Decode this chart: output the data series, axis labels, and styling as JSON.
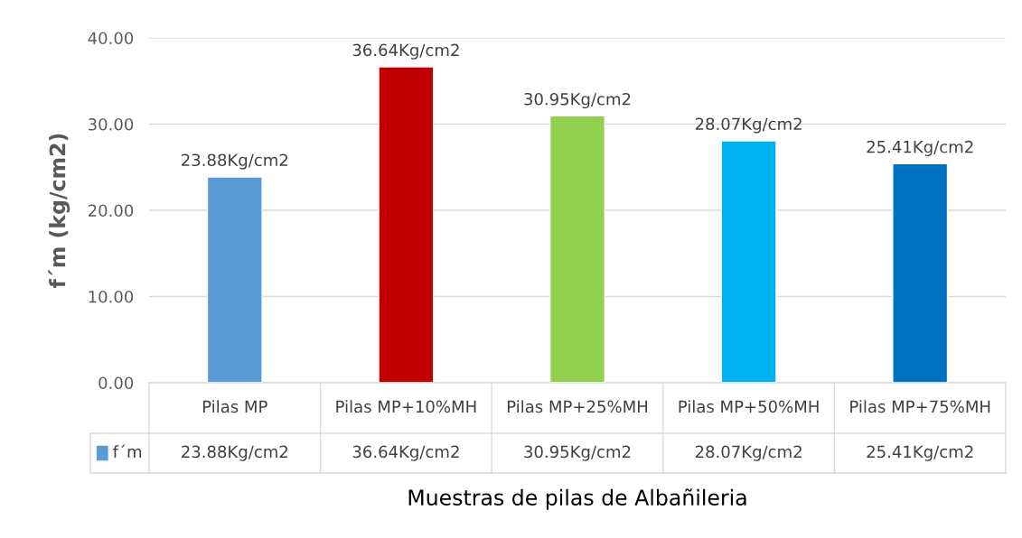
{
  "chart_data": {
    "type": "bar",
    "categories": [
      "Pilas MP",
      "Pilas MP+10%MH",
      "Pilas MP+25%MH",
      "Pilas MP+50%MH",
      "Pilas MP+75%MH"
    ],
    "series": [
      {
        "name": "f´m",
        "color": "#5b9bd5",
        "colors": [
          "#5b9bd5",
          "#c00000",
          "#92d050",
          "#00b0f0",
          "#0070c0"
        ],
        "values": [
          23.88,
          36.64,
          30.95,
          28.07,
          25.41
        ],
        "value_labels": [
          "23.88Kg/cm2",
          "36.64Kg/cm2",
          "30.95Kg/cm2",
          "28.07Kg/cm2",
          "25.41Kg/cm2"
        ]
      }
    ],
    "xlabel": "Muestras de pilas de Albañileria",
    "ylabel": "f´m (kg/cm2)",
    "ylim": [
      0,
      40
    ],
    "yticks": [
      {
        "value": 0,
        "label": "0.00"
      },
      {
        "value": 10,
        "label": "10.00"
      },
      {
        "value": 20,
        "label": "20.00"
      },
      {
        "value": 30,
        "label": "30.00"
      },
      {
        "value": 40,
        "label": "40.00"
      }
    ],
    "grid": "y",
    "legend": "bottom"
  }
}
